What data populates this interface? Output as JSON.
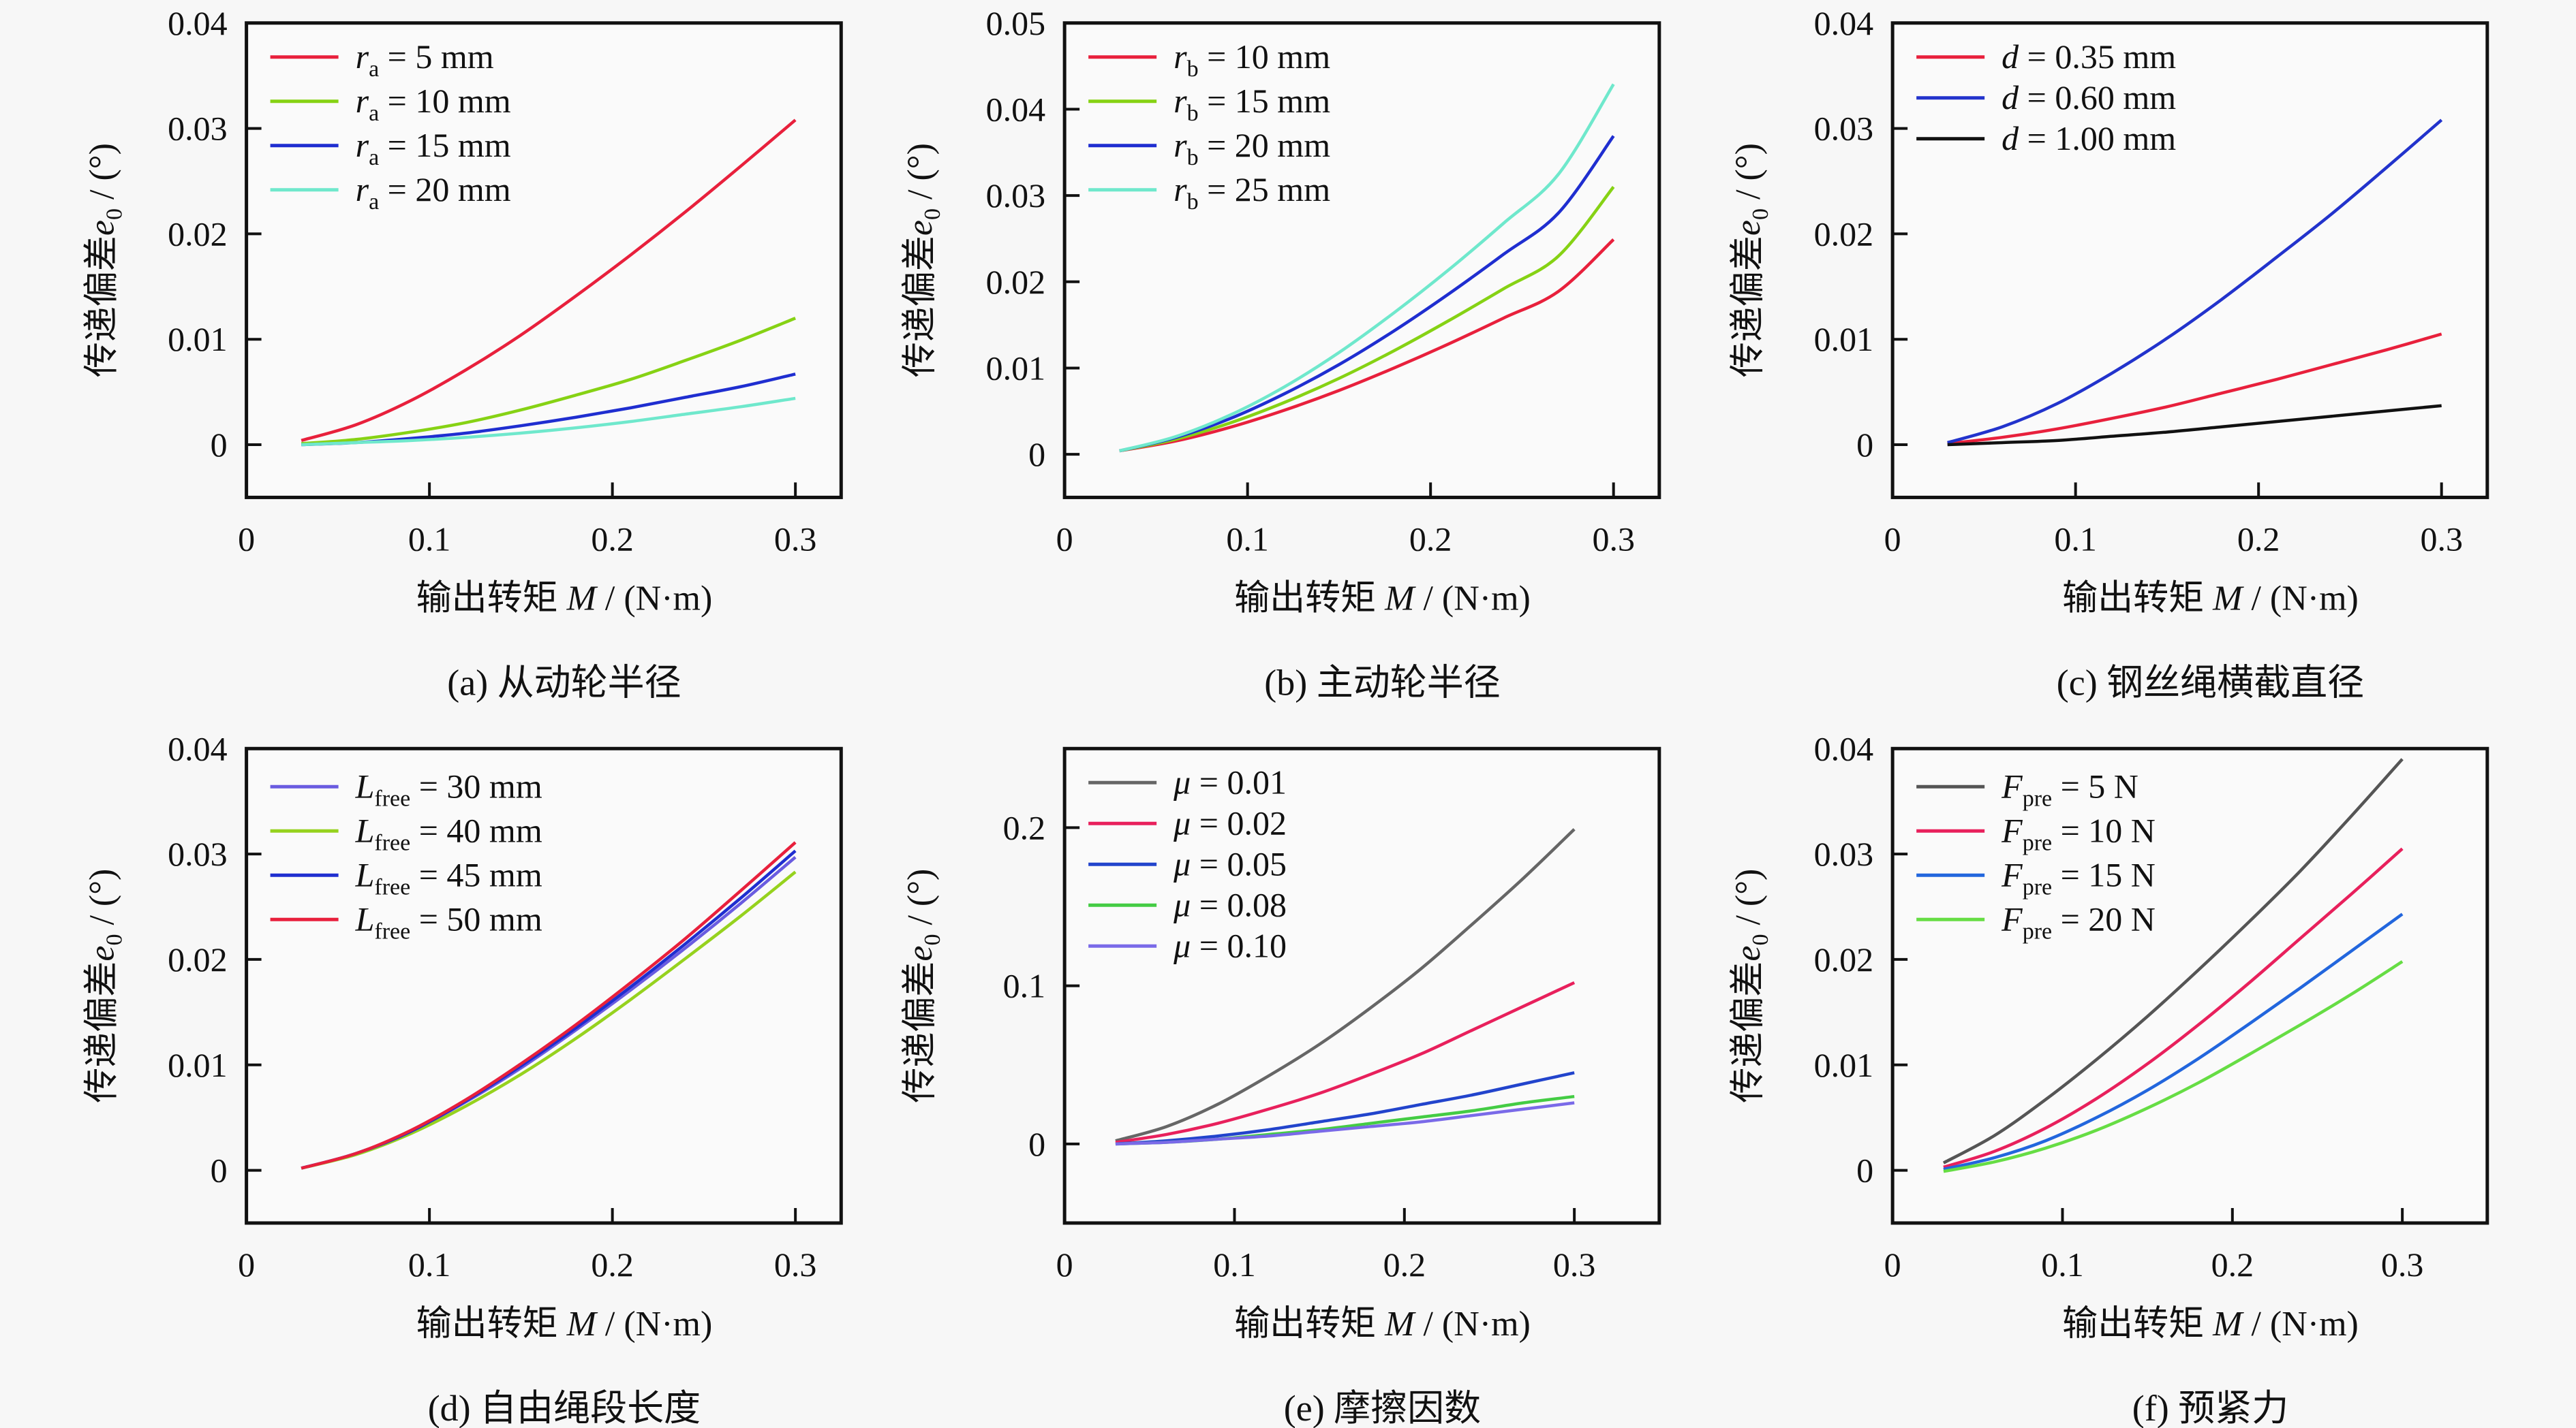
{
  "figure": {
    "panels": 6,
    "common_xlabel": "输出转矩 M / (N·m)",
    "common_ylabel": "传递偏差e0 / (°)"
  },
  "chart_data": [
    {
      "id": "a",
      "type": "line",
      "caption": "(a) 从动轮半径",
      "xlabel_cn": "输出转矩",
      "xlabel_sym": "M",
      "xlabel_unit": " / (N·m)",
      "ylabel_cn": "传递偏差",
      "ylabel_sym": "e",
      "ylabel_sub": "0",
      "ylabel_unit": " / (°)",
      "xlim": [
        0,
        0.325
      ],
      "ylim": [
        -0.005,
        0.04
      ],
      "xticks": [
        0,
        0.1,
        0.2,
        0.3
      ],
      "xtick_labels": [
        "0",
        "0.1",
        "0.2",
        "0.3"
      ],
      "yticks": [
        0,
        0.01,
        0.02,
        0.03,
        0.04
      ],
      "ytick_labels": [
        "0",
        "0.01",
        "0.02",
        "0.03",
        "0.04"
      ],
      "legend_position": "top-left",
      "grid": false,
      "x": [
        0.03,
        0.06,
        0.09,
        0.12,
        0.15,
        0.18,
        0.21,
        0.24,
        0.27,
        0.3
      ],
      "series": [
        {
          "sym": "r",
          "sub": "a",
          "value": " = 5 mm",
          "color": "#e8203c",
          "values": [
            0.0004,
            0.0019,
            0.0042,
            0.0071,
            0.0104,
            0.0141,
            0.018,
            0.0221,
            0.0264,
            0.0308
          ]
        },
        {
          "sym": "r",
          "sub": "a",
          "value": " = 10 mm",
          "color": "#86d214",
          "values": [
            0.0001,
            0.0005,
            0.0012,
            0.0021,
            0.0033,
            0.0047,
            0.0062,
            0.008,
            0.0099,
            0.012
          ]
        },
        {
          "sym": "r",
          "sub": "a",
          "value": " = 15 mm",
          "color": "#1f2ed0",
          "values": [
            0.0,
            0.0002,
            0.0006,
            0.0011,
            0.0018,
            0.0026,
            0.0035,
            0.0045,
            0.0055,
            0.0067
          ]
        },
        {
          "sym": "r",
          "sub": "a",
          "value": " = 20 mm",
          "color": "#6fe8cc",
          "values": [
            0.0,
            0.0002,
            0.0004,
            0.0007,
            0.0011,
            0.0016,
            0.0022,
            0.0029,
            0.0036,
            0.0044
          ]
        }
      ]
    },
    {
      "id": "b",
      "type": "line",
      "caption": "(b) 主动轮半径",
      "xlabel_cn": "输出转矩",
      "xlabel_sym": "M",
      "xlabel_unit": " / (N·m)",
      "ylabel_cn": "传递偏差",
      "ylabel_sym": "e",
      "ylabel_sub": "0",
      "ylabel_unit": " / (°)",
      "xlim": [
        0,
        0.325
      ],
      "ylim": [
        -0.005,
        0.05
      ],
      "xticks": [
        0,
        0.1,
        0.2,
        0.3
      ],
      "xtick_labels": [
        "0",
        "0.1",
        "0.2",
        "0.3"
      ],
      "yticks": [
        0,
        0.01,
        0.02,
        0.03,
        0.04,
        0.05
      ],
      "ytick_labels": [
        "0",
        "0.01",
        "0.02",
        "0.03",
        "0.04",
        "0.05"
      ],
      "legend_position": "top-left",
      "grid": false,
      "x": [
        0.03,
        0.06,
        0.09,
        0.12,
        0.15,
        0.18,
        0.21,
        0.24,
        0.27,
        0.3
      ],
      "series": [
        {
          "sym": "r",
          "sub": "b",
          "value": " = 10 mm",
          "color": "#e8203c",
          "values": [
            0.0004,
            0.0015,
            0.0031,
            0.0051,
            0.0074,
            0.01,
            0.0128,
            0.0158,
            0.0189,
            0.0249
          ]
        },
        {
          "sym": "r",
          "sub": "b",
          "value": " = 15 mm",
          "color": "#86d214",
          "values": [
            0.0004,
            0.0017,
            0.0036,
            0.006,
            0.0088,
            0.012,
            0.0155,
            0.0192,
            0.023,
            0.031
          ]
        },
        {
          "sym": "r",
          "sub": "b",
          "value": " = 20 mm",
          "color": "#1f2ed0",
          "values": [
            0.0004,
            0.0019,
            0.0041,
            0.007,
            0.0104,
            0.0143,
            0.0186,
            0.0232,
            0.028,
            0.0369
          ]
        },
        {
          "sym": "r",
          "sub": "b",
          "value": " = 25 mm",
          "color": "#6fe8cc",
          "values": [
            0.0004,
            0.002,
            0.0045,
            0.0078,
            0.0118,
            0.0164,
            0.0214,
            0.0268,
            0.0325,
            0.0429
          ]
        }
      ]
    },
    {
      "id": "c",
      "type": "line",
      "caption": "(c) 钢丝绳横截直径",
      "xlabel_cn": "输出转矩",
      "xlabel_sym": "M",
      "xlabel_unit": " / (N·m)",
      "ylabel_cn": "传递偏差",
      "ylabel_sym": "e",
      "ylabel_sub": "0",
      "ylabel_unit": " / (°)",
      "xlim": [
        0,
        0.325
      ],
      "ylim": [
        -0.005,
        0.04
      ],
      "xticks": [
        0,
        0.1,
        0.2,
        0.3
      ],
      "xtick_labels": [
        "0",
        "0.1",
        "0.2",
        "0.3"
      ],
      "yticks": [
        0,
        0.01,
        0.02,
        0.03,
        0.04
      ],
      "ytick_labels": [
        "0",
        "0.01",
        "0.02",
        "0.03",
        "0.04"
      ],
      "legend_position": "top-left",
      "grid": false,
      "x": [
        0.03,
        0.06,
        0.09,
        0.12,
        0.15,
        0.18,
        0.21,
        0.24,
        0.27,
        0.3
      ],
      "series": [
        {
          "sym": "d",
          "sub": "",
          "value": " = 0.35 mm",
          "color": "#e8203c",
          "values": [
            0.0001,
            0.0007,
            0.0015,
            0.0025,
            0.0036,
            0.0049,
            0.0062,
            0.0076,
            0.009,
            0.0105
          ]
        },
        {
          "sym": "d",
          "sub": "",
          "value": " = 0.60 mm",
          "color": "#2233cc",
          "values": [
            0.0002,
            0.0017,
            0.0039,
            0.0068,
            0.0101,
            0.0138,
            0.0178,
            0.0219,
            0.0263,
            0.0308
          ]
        },
        {
          "sym": "d",
          "sub": "",
          "value": " = 1.00 mm",
          "color": "#111111",
          "values": [
            0.0,
            0.0002,
            0.0004,
            0.0008,
            0.0012,
            0.0017,
            0.0022,
            0.0027,
            0.0032,
            0.0037
          ]
        }
      ]
    },
    {
      "id": "d",
      "type": "line",
      "caption": "(d) 自由绳段长度",
      "xlabel_cn": "输出转矩",
      "xlabel_sym": "M",
      "xlabel_unit": " / (N·m)",
      "ylabel_cn": "传递偏差",
      "ylabel_sym": "e",
      "ylabel_sub": "0",
      "ylabel_unit": " / (°)",
      "xlim": [
        0,
        0.325
      ],
      "ylim": [
        -0.005,
        0.04
      ],
      "xticks": [
        0,
        0.1,
        0.2,
        0.3
      ],
      "xtick_labels": [
        "0",
        "0.1",
        "0.2",
        "0.3"
      ],
      "yticks": [
        0,
        0.01,
        0.02,
        0.03,
        0.04
      ],
      "ytick_labels": [
        "0",
        "0.01",
        "0.02",
        "0.03",
        "0.04"
      ],
      "legend_position": "top-left",
      "grid": false,
      "x": [
        0.03,
        0.06,
        0.09,
        0.12,
        0.15,
        0.18,
        0.21,
        0.24,
        0.27,
        0.3
      ],
      "series": [
        {
          "sym": "L",
          "sub": "free",
          "value": " = 30 mm",
          "color": "#6a5ce0",
          "values": [
            0.0002,
            0.0016,
            0.0037,
            0.0065,
            0.0097,
            0.0133,
            0.0171,
            0.0211,
            0.0253,
            0.0297
          ]
        },
        {
          "sym": "L",
          "sub": "free",
          "value": " = 40 mm",
          "color": "#96d21e",
          "values": [
            0.0002,
            0.0015,
            0.0035,
            0.0061,
            0.0091,
            0.0125,
            0.0162,
            0.0201,
            0.0241,
            0.0283
          ]
        },
        {
          "sym": "L",
          "sub": "free",
          "value": " = 45 mm",
          "color": "#1f2ed0",
          "values": [
            0.0002,
            0.0016,
            0.0037,
            0.0066,
            0.0099,
            0.0135,
            0.0174,
            0.0215,
            0.0258,
            0.0303
          ]
        },
        {
          "sym": "L",
          "sub": "free",
          "value": " = 50 mm",
          "color": "#e8203c",
          "values": [
            0.0002,
            0.0016,
            0.0038,
            0.0067,
            0.0101,
            0.0138,
            0.0178,
            0.022,
            0.0265,
            0.0311
          ]
        }
      ]
    },
    {
      "id": "e",
      "type": "line",
      "caption": "(e) 摩擦因数",
      "xlabel_cn": "输出转矩",
      "xlabel_sym": "M",
      "xlabel_unit": " / (N·m)",
      "ylabel_cn": "传递偏差",
      "ylabel_sym": "e",
      "ylabel_sub": "0",
      "ylabel_unit": " / (°)",
      "xlim": [
        0,
        0.35
      ],
      "ylim": [
        -0.05,
        0.25
      ],
      "xticks": [
        0,
        0.1,
        0.2,
        0.3
      ],
      "xtick_labels": [
        "0",
        "0.1",
        "0.2",
        "0.3"
      ],
      "yticks": [
        0,
        0.1,
        0.2
      ],
      "ytick_labels": [
        "0",
        "0.1",
        "0.2"
      ],
      "legend_position": "top-left",
      "grid": false,
      "x": [
        0.03,
        0.06,
        0.09,
        0.12,
        0.15,
        0.18,
        0.21,
        0.24,
        0.27,
        0.3
      ],
      "series": [
        {
          "sym": "μ",
          "sub": "",
          "value": " = 0.01",
          "color": "#666666",
          "values": [
            0.002,
            0.011,
            0.025,
            0.043,
            0.063,
            0.086,
            0.111,
            0.139,
            0.168,
            0.199
          ]
        },
        {
          "sym": "μ",
          "sub": "",
          "value": " = 0.02",
          "color": "#e8205c",
          "values": [
            0.001,
            0.006,
            0.013,
            0.022,
            0.032,
            0.044,
            0.057,
            0.072,
            0.087,
            0.102
          ]
        },
        {
          "sym": "μ",
          "sub": "",
          "value": " = 0.05",
          "color": "#2244cc",
          "values": [
            0.0,
            0.002,
            0.005,
            0.009,
            0.014,
            0.019,
            0.025,
            0.031,
            0.038,
            0.045
          ]
        },
        {
          "sym": "μ",
          "sub": "",
          "value": " = 0.08",
          "color": "#44cc44",
          "values": [
            0.0,
            0.001,
            0.003,
            0.006,
            0.009,
            0.013,
            0.017,
            0.021,
            0.026,
            0.03
          ]
        },
        {
          "sym": "μ",
          "sub": "",
          "value": " = 0.10",
          "color": "#7a6ae8",
          "values": [
            0.0,
            0.001,
            0.003,
            0.005,
            0.008,
            0.011,
            0.014,
            0.018,
            0.022,
            0.026
          ]
        }
      ]
    },
    {
      "id": "f",
      "type": "line",
      "caption": "(f) 预紧力",
      "xlabel_cn": "输出转矩",
      "xlabel_sym": "M",
      "xlabel_unit": " / (N·m)",
      "ylabel_cn": "传递偏差",
      "ylabel_sym": "e",
      "ylabel_sub": "0",
      "ylabel_unit": " / (°)",
      "xlim": [
        0,
        0.35
      ],
      "ylim": [
        -0.005,
        0.04
      ],
      "xticks": [
        0,
        0.1,
        0.2,
        0.3
      ],
      "xtick_labels": [
        "0",
        "0.1",
        "0.2",
        "0.3"
      ],
      "yticks": [
        0,
        0.01,
        0.02,
        0.03,
        0.04
      ],
      "ytick_labels": [
        "0",
        "0.01",
        "0.02",
        "0.03",
        "0.04"
      ],
      "legend_position": "top-left",
      "grid": false,
      "x": [
        0.03,
        0.06,
        0.09,
        0.12,
        0.15,
        0.18,
        0.21,
        0.24,
        0.27,
        0.3
      ],
      "series": [
        {
          "sym": "F",
          "sub": "pre",
          "value": " = 5 N",
          "color": "#555555",
          "values": [
            0.0007,
            0.0033,
            0.0067,
            0.0105,
            0.0146,
            0.019,
            0.0236,
            0.0284,
            0.0336,
            0.039
          ]
        },
        {
          "sym": "F",
          "sub": "pre",
          "value": " = 10 N",
          "color": "#e8205c",
          "values": [
            0.0003,
            0.0018,
            0.004,
            0.0068,
            0.0101,
            0.0138,
            0.0178,
            0.022,
            0.0262,
            0.0305
          ]
        },
        {
          "sym": "F",
          "sub": "pre",
          "value": " = 15 N",
          "color": "#2266dd",
          "values": [
            0.0001,
            0.0012,
            0.0028,
            0.005,
            0.0076,
            0.0106,
            0.0139,
            0.0173,
            0.0208,
            0.0243
          ]
        },
        {
          "sym": "F",
          "sub": "pre",
          "value": " = 20 N",
          "color": "#66dd44",
          "values": [
            -0.0001,
            0.0008,
            0.0021,
            0.0038,
            0.0059,
            0.0083,
            0.011,
            0.0138,
            0.0167,
            0.0198
          ]
        }
      ]
    }
  ]
}
